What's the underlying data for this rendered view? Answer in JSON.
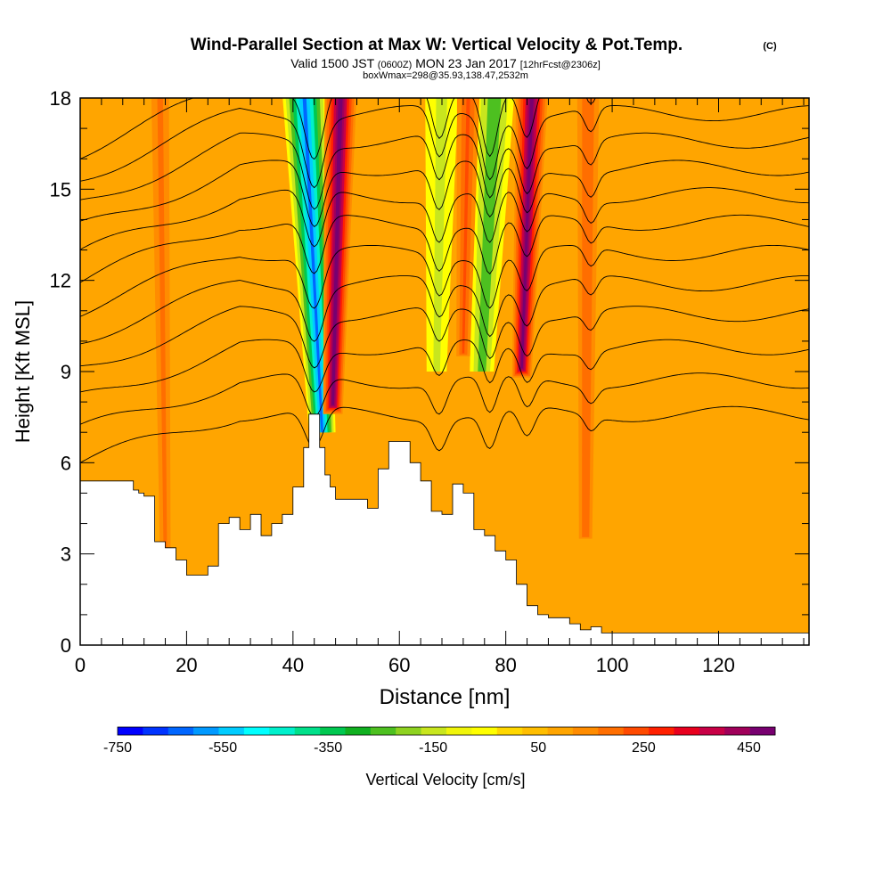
{
  "chart_data": {
    "type": "heatmap",
    "title": "Wind-Parallel Section at Max W: Vertical Velocity & Pot.Temp.",
    "title_mark": "(C)",
    "subtitle_pre": "Valid 1500 JST",
    "subtitle_utc": "(0600Z)",
    "subtitle_date": "MON 23 Jan 2017",
    "subtitle_run": "[12hrFcst@2306z]",
    "subtitle2": "boxWmax=298@35.93,138.47,2532m",
    "xlabel": "Distance [nm]",
    "ylabel": "Height [Kft MSL]",
    "xlim": [
      0,
      137
    ],
    "ylim": [
      0,
      18
    ],
    "x_ticks": [
      0,
      20,
      40,
      60,
      80,
      100,
      120
    ],
    "y_ticks": [
      0,
      3,
      6,
      9,
      12,
      15,
      18
    ],
    "colorbar": {
      "label": "Vertical Velocity [cm/s]",
      "range": [
        -750,
        500
      ],
      "ticks": [
        -750,
        -550,
        -350,
        -150,
        50,
        250,
        450
      ],
      "colors": [
        "#0000ff",
        "#0033ff",
        "#0066ff",
        "#0099ff",
        "#00ccff",
        "#00ffff",
        "#00f0cc",
        "#00e08a",
        "#00c850",
        "#10b020",
        "#4dc020",
        "#8ed220",
        "#c8e61e",
        "#f0f50a",
        "#ffff00",
        "#ffd700",
        "#ffbe00",
        "#ffa500",
        "#ff8c00",
        "#ff6e00",
        "#ff4a00",
        "#ff2000",
        "#e8001e",
        "#c80046",
        "#a0005a",
        "#780070"
      ]
    },
    "background_w": 80,
    "updraft_bands": [
      {
        "x_at_top": 49.0,
        "x_at_bottom": 47.5,
        "y_bottom": 7.6,
        "peak": 480
      },
      {
        "x_at_top": 85.0,
        "x_at_bottom": 83.0,
        "y_bottom": 8.8,
        "peak": 470
      },
      {
        "x_at_top": 73.0,
        "x_at_bottom": 72.0,
        "y_bottom": 9.5,
        "peak": 240
      },
      {
        "x_at_top": 95.5,
        "x_at_bottom": 95.0,
        "y_bottom": 3.5,
        "peak": 230
      },
      {
        "x_at_top": 15.0,
        "x_at_bottom": 16.0,
        "y_bottom": 3.0,
        "peak": 190
      }
    ],
    "downdraft_bands": [
      {
        "x_at_top": 42.0,
        "x_at_bottom": 45.5,
        "y_bottom": 7.0,
        "peak": -650
      },
      {
        "x_at_top": 78.0,
        "x_at_bottom": 75.5,
        "y_bottom": 9.0,
        "peak": -320
      },
      {
        "x_at_top": 68.0,
        "x_at_bottom": 67.0,
        "y_bottom": 9.0,
        "peak": -180
      }
    ],
    "terrain": {
      "x": [
        0,
        9,
        10,
        11,
        12,
        14,
        16,
        18,
        20,
        22,
        24,
        26,
        28,
        30,
        32,
        34,
        36,
        38,
        40,
        42,
        43,
        44,
        45,
        46,
        47,
        48,
        50,
        52,
        54,
        56,
        58,
        60,
        62,
        64,
        66,
        68,
        70,
        72,
        74,
        76,
        78,
        80,
        82,
        84,
        86,
        88,
        90,
        92,
        94,
        96,
        98,
        100,
        104,
        108,
        112,
        120,
        130,
        137
      ],
      "height_kft": [
        5.4,
        5.4,
        5.1,
        5.0,
        4.9,
        3.4,
        3.2,
        2.8,
        2.3,
        2.3,
        2.6,
        4.0,
        4.2,
        3.8,
        4.3,
        3.6,
        4.0,
        4.3,
        5.2,
        6.5,
        7.6,
        7.6,
        6.5,
        5.6,
        5.2,
        4.8,
        4.8,
        4.8,
        4.5,
        5.8,
        6.7,
        6.7,
        6.0,
        5.4,
        4.4,
        4.3,
        5.3,
        5.0,
        3.8,
        3.6,
        3.1,
        2.8,
        2.0,
        1.3,
        1.0,
        0.9,
        0.9,
        0.7,
        0.5,
        0.6,
        0.4,
        0.4,
        0.4,
        0.4,
        0.4,
        0.4,
        0.4,
        0.4
      ]
    },
    "theta_contours": {
      "levels_kft": [
        7.0,
        8.1,
        9.2,
        10.3,
        11.3,
        12.3,
        13.3,
        14.2,
        15.1,
        16.0,
        16.9,
        17.8
      ]
    }
  }
}
